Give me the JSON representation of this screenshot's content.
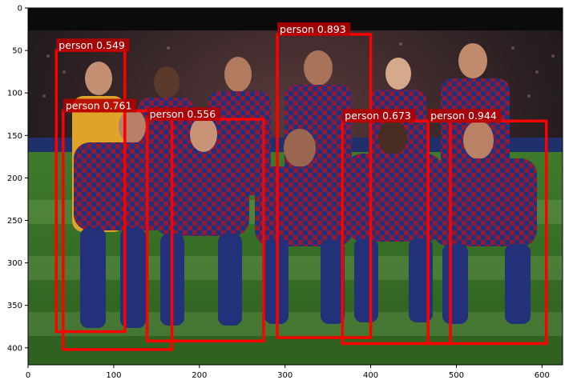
{
  "chart_data": {
    "type": "image_with_bounding_boxes",
    "x_axis": {
      "range": [
        0,
        624
      ],
      "ticks": [
        0,
        100,
        200,
        300,
        400,
        500,
        600
      ]
    },
    "y_axis": {
      "range": [
        420,
        0
      ],
      "inverted": true,
      "ticks": [
        0,
        50,
        100,
        150,
        200,
        250,
        300,
        350,
        400
      ]
    },
    "grid": false,
    "box_color": "#ff0000",
    "label_bg_color": "#b40000",
    "detections": [
      {
        "label": "person 0.549",
        "x0": 33,
        "y0": 50,
        "x1": 113,
        "y1": 381
      },
      {
        "label": "person 0.761",
        "x0": 41,
        "y0": 121,
        "x1": 168,
        "y1": 402
      },
      {
        "label": "person 0.556",
        "x0": 139,
        "y0": 131,
        "x1": 275,
        "y1": 392
      },
      {
        "label": "person 0.893",
        "x0": 291,
        "y0": 31,
        "x1": 400,
        "y1": 388
      },
      {
        "label": "person 0.673",
        "x0": 367,
        "y0": 133,
        "x1": 493,
        "y1": 395
      },
      {
        "label": "person 0.944",
        "x0": 467,
        "y0": 133,
        "x1": 605,
        "y1": 395
      }
    ]
  }
}
